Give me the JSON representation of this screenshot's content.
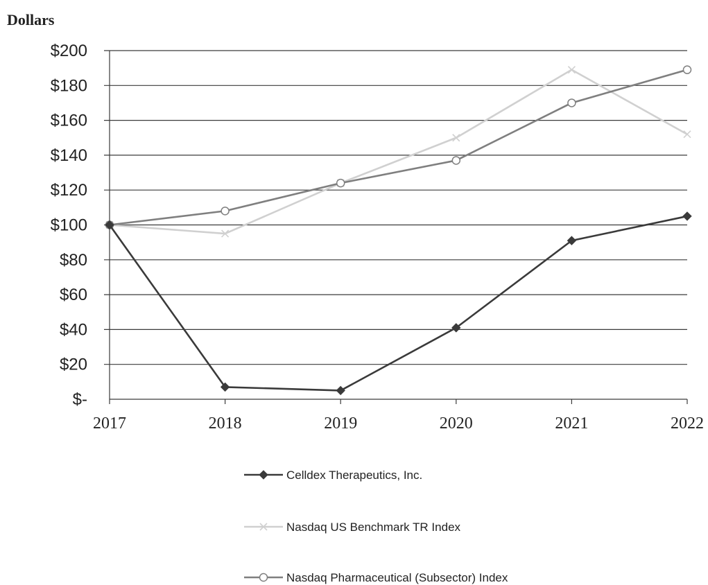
{
  "chart_data": {
    "type": "line",
    "title": "",
    "ylabel": "Dollars",
    "xlabel": "",
    "x": [
      "2017",
      "2018",
      "2019",
      "2020",
      "2021",
      "2022"
    ],
    "ylim": [
      0,
      200
    ],
    "yticks": [
      {
        "value": 0,
        "label": "$-"
      },
      {
        "value": 20,
        "label": "$20"
      },
      {
        "value": 40,
        "label": "$40"
      },
      {
        "value": 60,
        "label": "$60"
      },
      {
        "value": 80,
        "label": "$80"
      },
      {
        "value": 100,
        "label": "$100"
      },
      {
        "value": 120,
        "label": "$120"
      },
      {
        "value": 140,
        "label": "$140"
      },
      {
        "value": 160,
        "label": "$160"
      },
      {
        "value": 180,
        "label": "$180"
      },
      {
        "value": 200,
        "label": "$200"
      }
    ],
    "grid": true,
    "legend_position": "bottom",
    "series": [
      {
        "name": "Celldex Therapeutics, Inc.",
        "values": [
          100,
          7,
          5,
          41,
          91,
          105
        ],
        "color": "#3a3a3a",
        "marker": "diamond"
      },
      {
        "name": "Nasdaq US Benchmark TR Index",
        "values": [
          100,
          95,
          124,
          150,
          189,
          152
        ],
        "color": "#d0d0d0",
        "marker": "x"
      },
      {
        "name": "Nasdaq Pharmaceutical (Subsector) Index",
        "values": [
          100,
          108,
          124,
          137,
          170,
          189
        ],
        "color": "#7f7f7f",
        "marker": "circle"
      }
    ]
  }
}
